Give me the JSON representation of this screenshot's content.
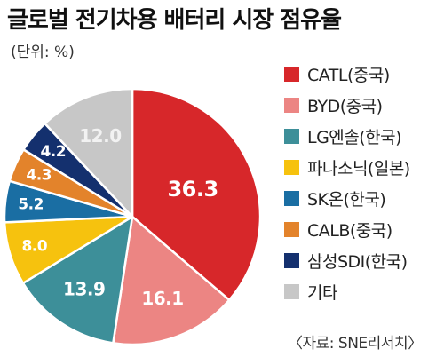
{
  "title": "글로벌 전기차용 배터리 시장 점유율",
  "unit": "(단위: %)",
  "source": "〈자료: SNE리서치〉",
  "chart_data": {
    "type": "pie",
    "title": "글로벌 전기차용 배터리 시장 점유율",
    "unit": "%",
    "legend_position": "right",
    "slices": [
      {
        "label": "CATL(중국)",
        "value": 36.3,
        "display": "36.3",
        "color": "#d7272a",
        "text_color": "#ffffff"
      },
      {
        "label": "BYD(중국)",
        "value": 16.1,
        "display": "16.1",
        "color": "#ec8583",
        "text_color": "#ffffff"
      },
      {
        "label": "LG엔솔(한국)",
        "value": 13.9,
        "display": "13.9",
        "color": "#3d8f99",
        "text_color": "#ffffff"
      },
      {
        "label": "파나소닉(일본)",
        "value": 8.0,
        "display": "8.0",
        "color": "#f6c20e",
        "text_color": "#ffffff"
      },
      {
        "label": "SK온(한국)",
        "value": 5.2,
        "display": "5.2",
        "color": "#1a6ea3",
        "text_color": "#ffffff"
      },
      {
        "label": "CALB(중국)",
        "value": 4.3,
        "display": "4.3",
        "color": "#e3832b",
        "text_color": "#ffffff"
      },
      {
        "label": "삼성SDI(한국)",
        "value": 4.2,
        "display": "4.2",
        "color": "#14306e",
        "text_color": "#ffffff"
      },
      {
        "label": "기타",
        "value": 12.0,
        "display": "12.0",
        "color": "#c7c7c7",
        "text_color": "#f2f2f2"
      }
    ]
  }
}
